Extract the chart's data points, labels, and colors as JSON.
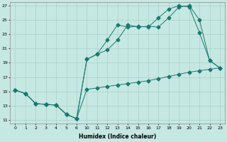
{
  "xlabel": "Humidex (Indice chaleur)",
  "bg_color": "#c6e8e2",
  "grid_color": "#aacfca",
  "line_color": "#1a7870",
  "xlabels": [
    "0",
    "1",
    "2",
    "3",
    "4",
    "5",
    "6",
    "10",
    "11",
    "12",
    "13",
    "14",
    "15",
    "16",
    "17",
    "18",
    "19",
    "20",
    "21",
    "22",
    "23"
  ],
  "ylim": [
    10.5,
    27.5
  ],
  "yticks": [
    11,
    13,
    15,
    17,
    19,
    21,
    23,
    25,
    27
  ],
  "line1_y": [
    15.2,
    14.7,
    13.3,
    13.2,
    13.1,
    11.8,
    11.2,
    19.5,
    20.2,
    20.8,
    22.2,
    24.3,
    24.0,
    24.1,
    24.0,
    25.3,
    26.8,
    27.0,
    25.0,
    19.3,
    18.3
  ],
  "line2_y": [
    15.2,
    14.7,
    13.3,
    13.2,
    13.1,
    11.8,
    11.2,
    19.5,
    20.2,
    22.2,
    24.3,
    24.0,
    24.1,
    24.0,
    25.3,
    26.5,
    27.0,
    26.8,
    23.2,
    19.3,
    18.3
  ],
  "line3_y": [
    15.2,
    14.7,
    13.3,
    13.2,
    13.1,
    11.8,
    11.2,
    15.3,
    15.5,
    15.7,
    15.9,
    16.1,
    16.3,
    16.5,
    16.8,
    17.1,
    17.4,
    17.7,
    17.9,
    18.1,
    18.3
  ]
}
